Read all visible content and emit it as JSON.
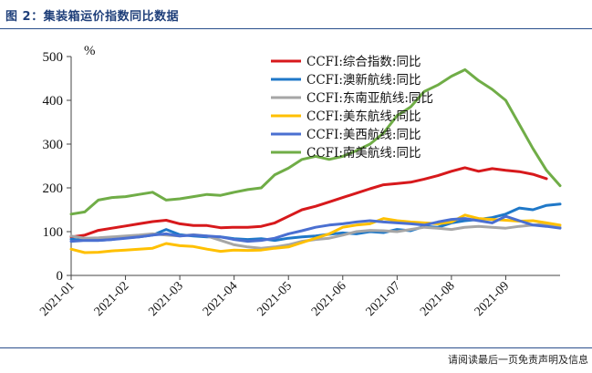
{
  "figure": {
    "title": "图 2：集装箱运价指数同比数据",
    "footer": "请阅读最后一页免责声明及信息"
  },
  "chart_data": {
    "type": "line",
    "title": "",
    "xlabel": "",
    "ylabel": "%",
    "ylim": [
      0,
      500
    ],
    "yticks": [
      0,
      100,
      200,
      300,
      400,
      500
    ],
    "xlim": [
      0,
      9
    ],
    "xtick_labels": [
      "2021-01",
      "2021-02",
      "2021-03",
      "2021-04",
      "2021-05",
      "2021-06",
      "2021-07",
      "2021-08",
      "2021-09"
    ],
    "grid": false,
    "legend_position": "top-right",
    "series": [
      {
        "name": "CCFI:综合指数:同比",
        "color": "#d7191c",
        "x": [
          0,
          0.25,
          0.5,
          0.75,
          1,
          1.25,
          1.5,
          1.75,
          2,
          2.25,
          2.5,
          2.75,
          3,
          3.25,
          3.5,
          3.75,
          4,
          4.25,
          4.5,
          4.75,
          5,
          5.25,
          5.5,
          5.75,
          6,
          6.25,
          6.5,
          6.75,
          7,
          7.25,
          7.5,
          7.75,
          8,
          8.25,
          8.5,
          8.75
        ],
        "values": [
          88,
          92,
          103,
          108,
          113,
          118,
          123,
          126,
          118,
          114,
          114,
          109,
          110,
          110,
          112,
          120,
          135,
          150,
          158,
          168,
          178,
          188,
          198,
          207,
          210,
          213,
          220,
          228,
          238,
          246,
          238,
          244,
          240,
          237,
          231,
          221
        ]
      },
      {
        "name": "CCFI:澳新航线:同比",
        "color": "#1f78c8",
        "x": [
          0,
          0.25,
          0.5,
          0.75,
          1,
          1.25,
          1.5,
          1.75,
          2,
          2.25,
          2.5,
          2.75,
          3,
          3.25,
          3.5,
          3.75,
          4,
          4.25,
          4.5,
          4.75,
          5,
          5.25,
          5.5,
          5.75,
          6,
          6.25,
          6.5,
          6.75,
          7,
          7.25,
          7.5,
          7.75,
          8,
          8.25,
          8.5,
          8.75,
          9
        ],
        "values": [
          83,
          80,
          80,
          82,
          86,
          88,
          92,
          105,
          93,
          90,
          88,
          88,
          84,
          82,
          84,
          80,
          85,
          88,
          90,
          94,
          97,
          95,
          100,
          98,
          105,
          102,
          112,
          110,
          120,
          125,
          128,
          132,
          140,
          154,
          150,
          160,
          163
        ]
      },
      {
        "name": "CCFI:东南亚航线:同比",
        "color": "#a6a6a6",
        "x": [
          0,
          0.25,
          0.5,
          0.75,
          1,
          1.25,
          1.5,
          1.75,
          2,
          2.25,
          2.5,
          2.75,
          3,
          3.25,
          3.5,
          3.75,
          4,
          4.25,
          4.5,
          4.75,
          5,
          5.25,
          5.5,
          5.75,
          6,
          6.25,
          6.5,
          6.75,
          7,
          7.25,
          7.5,
          7.75,
          8,
          8.25,
          8.5,
          8.75,
          9
        ],
        "values": [
          90,
          85,
          86,
          88,
          90,
          92,
          95,
          92,
          90,
          93,
          90,
          80,
          70,
          65,
          62,
          65,
          70,
          78,
          82,
          85,
          92,
          100,
          103,
          102,
          100,
          105,
          110,
          108,
          105,
          110,
          112,
          110,
          108,
          112,
          115,
          118,
          110
        ]
      },
      {
        "name": "CCFI:美东航线:同比",
        "color": "#ffc000",
        "x": [
          0,
          0.25,
          0.5,
          0.75,
          1,
          1.25,
          1.5,
          1.75,
          2,
          2.25,
          2.5,
          2.75,
          3,
          3.25,
          3.5,
          3.75,
          4,
          4.25,
          4.5,
          4.75,
          5,
          5.25,
          5.5,
          5.75,
          6,
          6.25,
          6.5,
          6.75,
          7,
          7.25,
          7.5,
          7.75,
          8,
          8.25,
          8.5,
          8.75,
          9
        ],
        "values": [
          60,
          52,
          53,
          56,
          58,
          60,
          62,
          73,
          68,
          66,
          60,
          55,
          58,
          57,
          58,
          62,
          65,
          75,
          85,
          95,
          110,
          115,
          118,
          130,
          125,
          122,
          120,
          118,
          122,
          138,
          130,
          128,
          126,
          124,
          125,
          120,
          115
        ]
      },
      {
        "name": "CCFI:美西航线:同比",
        "color": "#4a6fd1",
        "x": [
          0,
          0.25,
          0.5,
          0.75,
          1,
          1.25,
          1.5,
          1.75,
          2,
          2.25,
          2.5,
          2.75,
          3,
          3.25,
          3.5,
          3.75,
          4,
          4.25,
          4.5,
          4.75,
          5,
          5.25,
          5.5,
          5.75,
          6,
          6.25,
          6.5,
          6.75,
          7,
          7.25,
          7.5,
          7.75,
          8,
          8.25,
          8.5,
          8.75,
          9
        ],
        "values": [
          78,
          80,
          80,
          82,
          85,
          88,
          92,
          95,
          90,
          92,
          90,
          88,
          82,
          78,
          80,
          85,
          95,
          102,
          110,
          115,
          118,
          122,
          125,
          122,
          120,
          118,
          115,
          122,
          128,
          130,
          125,
          120,
          135,
          125,
          115,
          112,
          108
        ]
      },
      {
        "name": "CCFI:南美航线:同比",
        "color": "#70ad47",
        "x": [
          0,
          0.25,
          0.5,
          0.75,
          1,
          1.25,
          1.5,
          1.75,
          2,
          2.25,
          2.5,
          2.75,
          3,
          3.25,
          3.5,
          3.75,
          4,
          4.25,
          4.5,
          4.75,
          5,
          5.25,
          5.5,
          5.75,
          6,
          6.25,
          6.5,
          6.75,
          7,
          7.25,
          7.5,
          7.75,
          8,
          8.25,
          8.5,
          8.75,
          9
        ],
        "values": [
          140,
          145,
          172,
          178,
          180,
          185,
          190,
          172,
          175,
          180,
          185,
          183,
          190,
          196,
          200,
          230,
          245,
          265,
          272,
          265,
          272,
          285,
          300,
          325,
          365,
          385,
          420,
          435,
          455,
          470,
          445,
          425,
          400,
          345,
          290,
          240,
          205
        ]
      }
    ]
  }
}
